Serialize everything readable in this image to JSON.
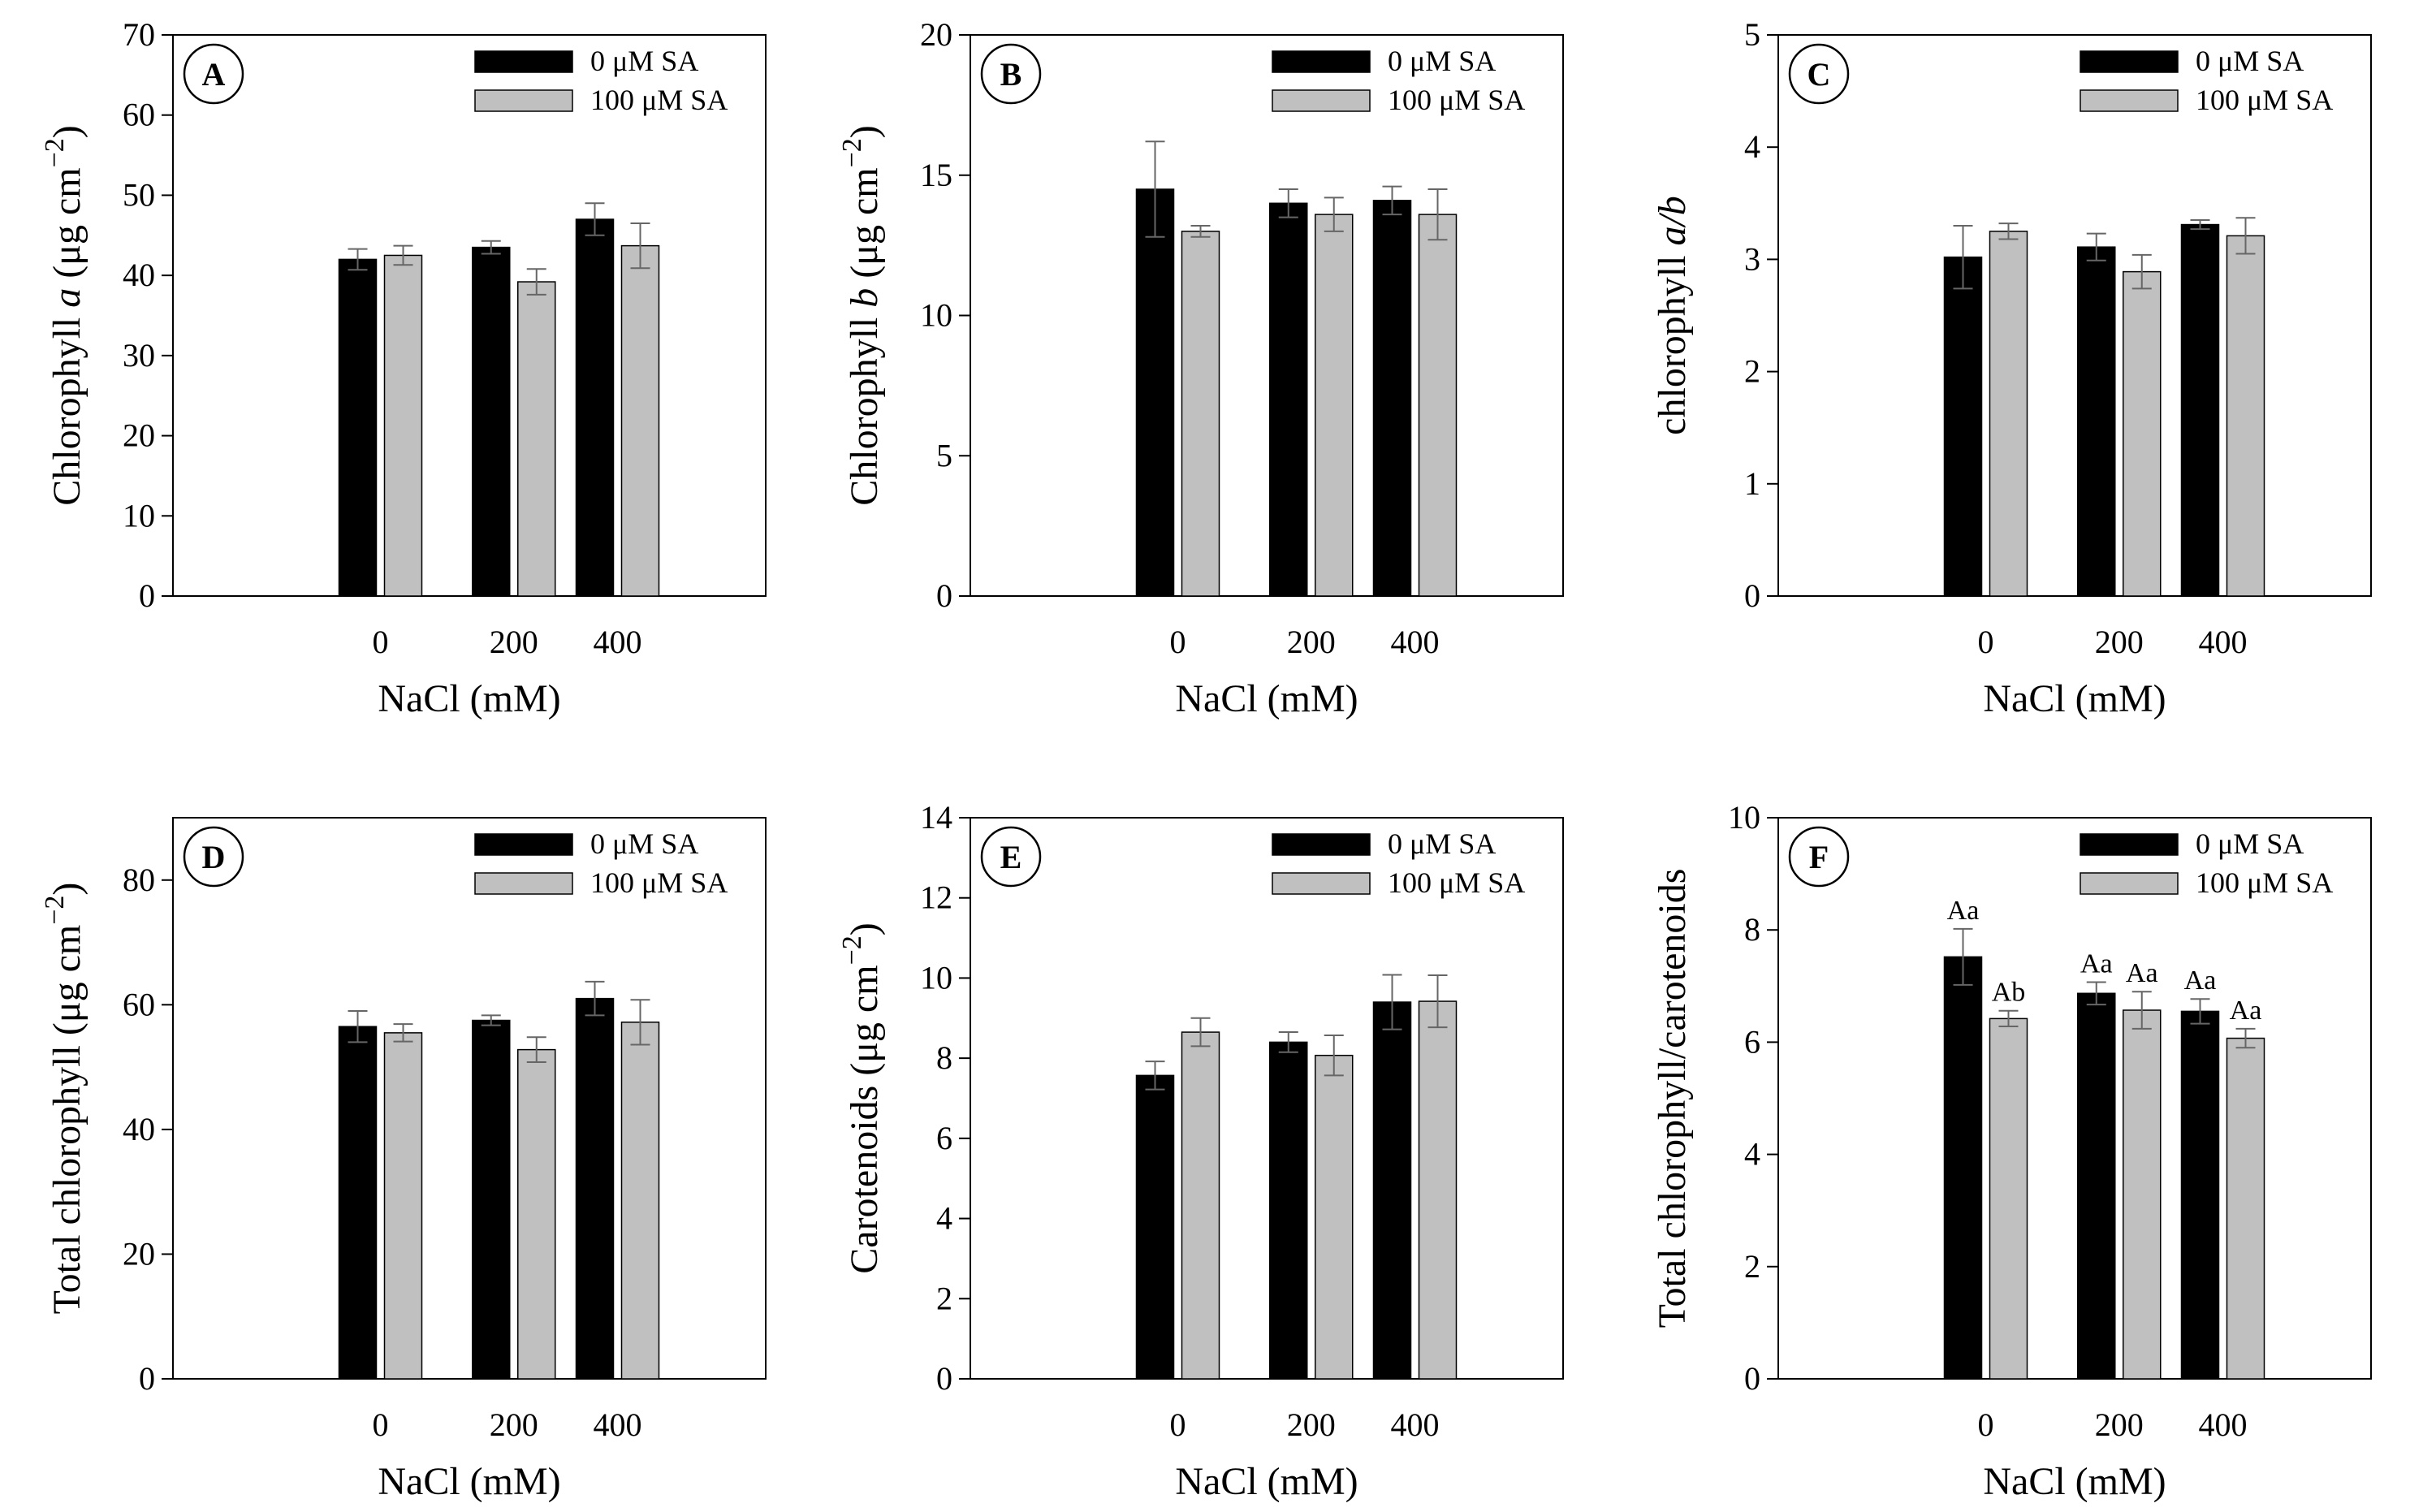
{
  "colors": {
    "series0": "#000000",
    "series1": "#c0c0c0",
    "axis": "#000000",
    "errorbar": "#666666"
  },
  "chart_data": [
    {
      "id": "A",
      "type": "bar",
      "letter": "A",
      "categories": [
        "0",
        "200",
        "400"
      ],
      "xlabel": "NaCl (mM)",
      "ylabel": {
        "pre": "Chlorophyll ",
        "ital": "a",
        "post": " (μg cm",
        "sup": "−2",
        "end": ")"
      },
      "ylim": [
        0,
        70
      ],
      "yticks": [
        "0",
        "10",
        "20",
        "30",
        "40",
        "50",
        "60",
        "70"
      ],
      "legend": [
        "0 μM SA",
        "100 μM SA"
      ],
      "series": [
        {
          "name": "0 μM SA",
          "values": [
            42.0,
            43.5,
            47.0
          ],
          "errors": [
            1.3,
            0.8,
            2.0
          ]
        },
        {
          "name": "100 μM SA",
          "values": [
            42.5,
            39.2,
            43.7
          ],
          "errors": [
            1.2,
            1.6,
            2.8
          ]
        }
      ],
      "annotations": [
        [],
        []
      ]
    },
    {
      "id": "B",
      "type": "bar",
      "letter": "B",
      "categories": [
        "0",
        "200",
        "400"
      ],
      "xlabel": "NaCl (mM)",
      "ylabel": {
        "pre": "Chlorophyll ",
        "ital": "b",
        "post": "  (μg cm",
        "sup": "−2",
        "end": ")"
      },
      "ylim": [
        0,
        20
      ],
      "yticks": [
        "0",
        "5",
        "10",
        "15",
        "20"
      ],
      "legend": [
        "0 μM SA",
        "100 μM SA"
      ],
      "series": [
        {
          "name": "0 μM SA",
          "values": [
            14.5,
            14.0,
            14.1
          ],
          "errors": [
            1.7,
            0.5,
            0.5
          ]
        },
        {
          "name": "100 μM SA",
          "values": [
            13.0,
            13.6,
            13.6
          ],
          "errors": [
            0.2,
            0.6,
            0.9
          ]
        }
      ],
      "annotations": [
        [],
        []
      ]
    },
    {
      "id": "C",
      "type": "bar",
      "letter": "C",
      "categories": [
        "0",
        "200",
        "400"
      ],
      "xlabel": "NaCl (mM)",
      "ylabel": {
        "pre": "chlorophyll ",
        "ital": "a/b",
        "post": "",
        "sup": "",
        "end": ""
      },
      "ylim": [
        0,
        5
      ],
      "yticks": [
        "0",
        "1",
        "2",
        "3",
        "4",
        "5"
      ],
      "legend": [
        "0 μM SA",
        "100 μM SA"
      ],
      "series": [
        {
          "name": "0 μM SA",
          "values": [
            3.02,
            3.11,
            3.31
          ],
          "errors": [
            0.28,
            0.12,
            0.04
          ]
        },
        {
          "name": "100 μM SA",
          "values": [
            3.25,
            2.89,
            3.21
          ],
          "errors": [
            0.07,
            0.15,
            0.16
          ]
        }
      ],
      "annotations": [
        [],
        []
      ]
    },
    {
      "id": "D",
      "type": "bar",
      "letter": "D",
      "categories": [
        "0",
        "200",
        "400"
      ],
      "xlabel": "NaCl (mM)",
      "ylabel": {
        "pre": "Total chlorophyll (μg cm",
        "ital": "",
        "post": "",
        "sup": "−2",
        "end": ")"
      },
      "ylim": [
        0,
        90
      ],
      "yticks": [
        "0",
        "20",
        "40",
        "60",
        "80"
      ],
      "ytickvals": [
        0,
        20,
        40,
        60,
        80
      ],
      "legend": [
        "0 μM SA",
        "100 μM SA"
      ],
      "series": [
        {
          "name": "0 μM SA",
          "values": [
            56.5,
            57.5,
            61.0
          ],
          "errors": [
            2.5,
            0.8,
            2.7
          ]
        },
        {
          "name": "100 μM SA",
          "values": [
            55.5,
            52.8,
            57.2
          ],
          "errors": [
            1.4,
            2.0,
            3.6
          ]
        }
      ],
      "annotations": [
        [],
        []
      ]
    },
    {
      "id": "E",
      "type": "bar",
      "letter": "E",
      "categories": [
        "0",
        "200",
        "400"
      ],
      "xlabel": "NaCl (mM)",
      "ylabel": {
        "pre": "Carotenoids (μg cm",
        "ital": "",
        "post": "",
        "sup": "−2",
        "end": ")"
      },
      "ylim": [
        0,
        14
      ],
      "yticks": [
        "0",
        "2",
        "4",
        "6",
        "8",
        "10",
        "12",
        "14"
      ],
      "legend": [
        "0 μM SA",
        "100 μM SA"
      ],
      "series": [
        {
          "name": "0 μM SA",
          "values": [
            7.57,
            8.4,
            9.4
          ],
          "errors": [
            0.35,
            0.25,
            0.68
          ]
        },
        {
          "name": "100 μM SA",
          "values": [
            8.65,
            8.07,
            9.42
          ],
          "errors": [
            0.35,
            0.5,
            0.65
          ]
        }
      ],
      "annotations": [
        [],
        []
      ]
    },
    {
      "id": "F",
      "type": "bar",
      "letter": "F",
      "categories": [
        "0",
        "200",
        "400"
      ],
      "xlabel": "NaCl (mM)",
      "ylabel": {
        "pre": "Total chlorophyll/carotenoids",
        "ital": "",
        "post": "",
        "sup": "",
        "end": ""
      },
      "ylim": [
        0,
        10
      ],
      "yticks": [
        "0",
        "2",
        "4",
        "6",
        "8",
        "10"
      ],
      "legend": [
        "0 μM SA",
        "100 μM SA"
      ],
      "series": [
        {
          "name": "0 μM SA",
          "values": [
            7.52,
            6.87,
            6.55
          ],
          "errors": [
            0.5,
            0.2,
            0.22
          ]
        },
        {
          "name": "100 μM SA",
          "values": [
            6.42,
            6.57,
            6.07
          ],
          "errors": [
            0.14,
            0.33,
            0.17
          ]
        }
      ],
      "annotations": [
        [
          "Aa",
          "Aa",
          "Aa"
        ],
        [
          "Ab",
          "Aa",
          "Aa"
        ]
      ]
    }
  ]
}
